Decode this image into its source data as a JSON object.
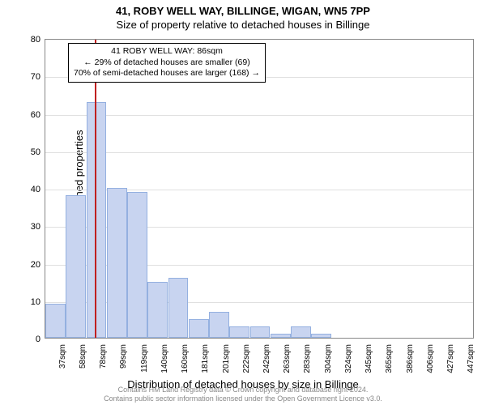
{
  "title_main": "41, ROBY WELL WAY, BILLINGE, WIGAN, WN5 7PP",
  "title_sub": "Size of property relative to detached houses in Billinge",
  "ylabel": "Number of detached properties",
  "xlabel": "Distribution of detached houses by size in Billinge",
  "footer_line1": "Contains HM Land Registry data © Crown copyright and database right 2024.",
  "footer_line2": "Contains public sector information licensed under the Open Government Licence v3.0.",
  "annotation": {
    "line1": "41 ROBY WELL WAY: 86sqm",
    "line2": "← 29% of detached houses are smaller (69)",
    "line3": "70% of semi-detached houses are larger (168) →"
  },
  "chart": {
    "type": "histogram",
    "ylim": [
      0,
      80
    ],
    "yticks": [
      0,
      10,
      20,
      30,
      40,
      50,
      60,
      70,
      80
    ],
    "grid_color": "#e0e0e0",
    "border_color": "#888888",
    "background_color": "#ffffff",
    "bar_color": "#c8d4f0",
    "bar_border_color": "#94b0e0",
    "marker_color": "#c02020",
    "marker_x_value": 86,
    "x_categories": [
      "37sqm",
      "58sqm",
      "78sqm",
      "99sqm",
      "119sqm",
      "140sqm",
      "160sqm",
      "181sqm",
      "201sqm",
      "222sqm",
      "242sqm",
      "263sqm",
      "283sqm",
      "304sqm",
      "324sqm",
      "345sqm",
      "365sqm",
      "386sqm",
      "406sqm",
      "427sqm",
      "447sqm"
    ],
    "values": [
      9,
      38,
      63,
      40,
      39,
      15,
      16,
      5,
      7,
      3,
      3,
      1,
      3,
      1,
      0,
      0,
      0,
      0,
      0,
      0,
      0
    ],
    "title_fontsize": 13,
    "label_fontsize": 13,
    "tick_fontsize": 11,
    "marker_bin_index": 2,
    "marker_fraction_in_bin": 0.4
  }
}
